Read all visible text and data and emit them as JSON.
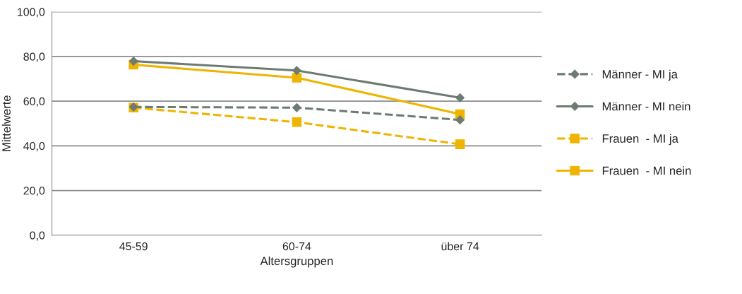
{
  "chart_data": {
    "type": "line",
    "xlabel": "Altersgruppen",
    "ylabel": "Mittelwerte",
    "categories": [
      "45-59",
      "60-74",
      "über 74"
    ],
    "series": [
      {
        "name": "Männer - MI ja",
        "color": "#6e7b72",
        "values": [
          57.4,
          57.1,
          51.6
        ],
        "marker": "diamond",
        "line_style": "dashed"
      },
      {
        "name": "Männer - MI nein",
        "color": "#6e7b72",
        "values": [
          77.9,
          73.7,
          61.5
        ],
        "marker": "diamond",
        "line_style": "solid"
      },
      {
        "name": "Frauen  - MI ja",
        "color": "#efb400",
        "values": [
          57.1,
          50.6,
          40.7
        ],
        "marker": "square",
        "line_style": "dashed"
      },
      {
        "name": "Frauen  - MI nein",
        "color": "#efb400",
        "values": [
          76.3,
          70.5,
          54.2
        ],
        "marker": "square",
        "line_style": "solid"
      }
    ],
    "ylim": [
      0,
      100
    ],
    "yticks": [
      {
        "value": 0,
        "label": "0,0"
      },
      {
        "value": 20,
        "label": "20,0"
      },
      {
        "value": 40,
        "label": "40,0"
      },
      {
        "value": 60,
        "label": "60,0"
      },
      {
        "value": 80,
        "label": "80,0"
      },
      {
        "value": 100,
        "label": "100,0"
      }
    ],
    "grid": "y",
    "legend": "right"
  }
}
